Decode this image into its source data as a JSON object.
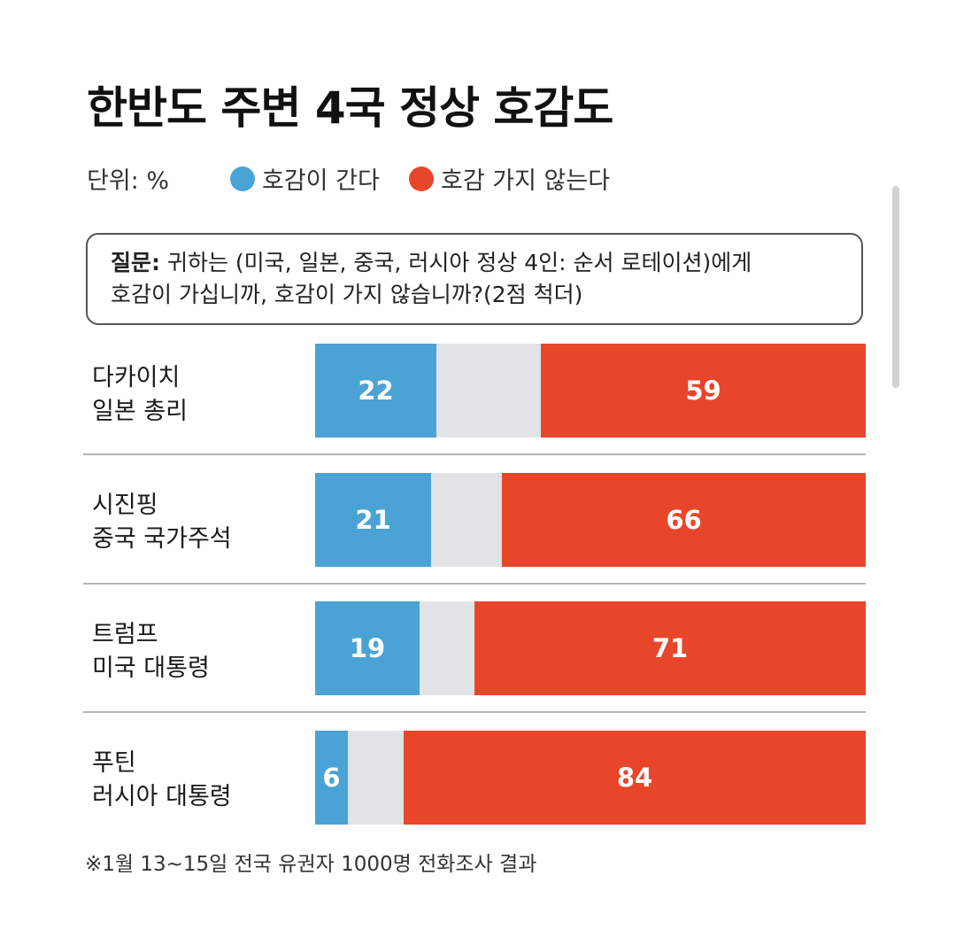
{
  "title": "한반도 주변 4국 정상 호감도",
  "unit": "단위: %",
  "colors": {
    "favorable": "#4aa3d4",
    "neutral": "#e1e4e6",
    "unfavorable": "#e8462a"
  },
  "question": {
    "label": "질문:",
    "text": " 귀하는 (미국, 일본, 중국, 러시아 정상 4인: 순서 로테이션)에게\n호감이 가십니까, 호감이 가지 않습니까?(2점 척더)"
  },
  "footnote": "※1월 13~15일 전국 유권자 1000명 전화조사 결과",
  "chart_data": {
    "type": "bar",
    "orientation": "horizontal",
    "stacked": true,
    "title": "한반도 주변 4국 정상 호감도",
    "unit": "%",
    "categories": [
      [
        "다카이치",
        "일본 총리"
      ],
      [
        "시진핑",
        "중국 국가주석"
      ],
      [
        "트럼프",
        "미국 대통령"
      ],
      [
        "푸틴",
        "러시아 대통령"
      ]
    ],
    "series": [
      {
        "name": "호감이 간다",
        "color": "#4aa3d4",
        "values": [
          22,
          21,
          19,
          6
        ]
      },
      {
        "color": "#e1e4e6",
        "values": [
          19,
          13,
          10,
          10
        ]
      },
      {
        "name": "호감 가지 않는다",
        "color": "#e8462a",
        "values": [
          59,
          66,
          71,
          84
        ]
      }
    ],
    "xlim": [
      0,
      100
    ],
    "legend_position": "top"
  }
}
